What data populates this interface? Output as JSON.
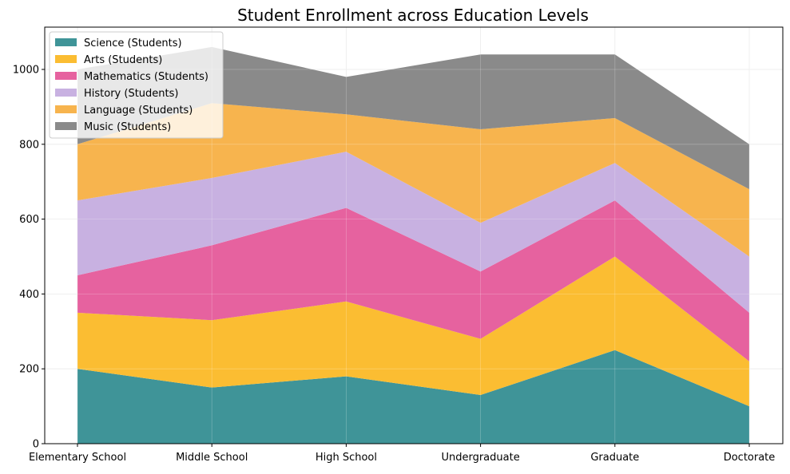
{
  "chart_data": {
    "type": "area",
    "stacked": true,
    "title": "Student Enrollment across Education Levels",
    "xlabel": "",
    "ylabel": "",
    "categories": [
      "Elementary School",
      "Middle School",
      "High School",
      "Undergraduate",
      "Graduate",
      "Doctorate"
    ],
    "ylim": [
      0,
      1113
    ],
    "yticks": [
      0,
      200,
      400,
      600,
      800,
      1000
    ],
    "grid": true,
    "legend_position": "top-left",
    "series": [
      {
        "name": "Science (Students)",
        "values": [
          200,
          150,
          180,
          130,
          250,
          100
        ],
        "color": "#3f9498"
      },
      {
        "name": "Arts (Students)",
        "values": [
          150,
          180,
          200,
          150,
          250,
          120
        ],
        "color": "#fbbd32"
      },
      {
        "name": "Mathematics (Students)",
        "values": [
          100,
          200,
          250,
          180,
          150,
          130
        ],
        "color": "#e6629f"
      },
      {
        "name": "History (Students)",
        "values": [
          200,
          180,
          150,
          130,
          100,
          150
        ],
        "color": "#c8b1e1"
      },
      {
        "name": "Language (Students)",
        "values": [
          150,
          200,
          100,
          250,
          120,
          180
        ],
        "color": "#f7b44e"
      },
      {
        "name": "Music (Students)",
        "values": [
          200,
          150,
          100,
          200,
          170,
          120
        ],
        "color": "#8a8a8a"
      }
    ]
  }
}
